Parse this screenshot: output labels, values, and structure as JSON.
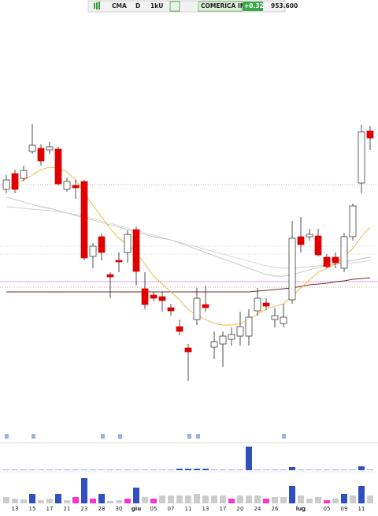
{
  "toolbar": {
    "symbol": "CMA",
    "period": "D",
    "mode": "1kU",
    "name": "COMERICA INC.",
    "change": "+0.32%",
    "price": "953.600"
  },
  "chart_data": {
    "type": "candlestick",
    "categories": [
      null,
      "13",
      null,
      "15",
      null,
      "17",
      null,
      "21",
      null,
      "23",
      null,
      "28",
      null,
      "30",
      null,
      "giu",
      null,
      "05",
      null,
      "07",
      null,
      "11",
      null,
      "13",
      null,
      "17",
      null,
      "20",
      null,
      "24",
      null,
      "26",
      null,
      null,
      "lug",
      null,
      null,
      "05",
      null,
      "09",
      null,
      "11",
      null
    ],
    "open": [
      260,
      280,
      274,
      308,
      312,
      310,
      311,
      260,
      265,
      270,
      175,
      200,
      152,
      170,
      180,
      209,
      134,
      126,
      124,
      110,
      86,
      59,
      95,
      114,
      60,
      64,
      70,
      74,
      74,
      106,
      116,
      95,
      90,
      120,
      200,
      200,
      201,
      174,
      174,
      160,
      200,
      268,
      334
    ],
    "high": [
      278,
      285,
      290,
      343,
      317,
      320,
      314,
      275,
      272,
      272,
      192,
      204,
      155,
      180,
      208,
      213,
      155,
      130,
      130,
      115,
      95,
      64,
      135,
      138,
      80,
      80,
      85,
      105,
      108,
      135,
      122,
      110,
      115,
      220,
      225,
      210,
      210,
      178,
      180,
      205,
      242,
      342,
      340
    ],
    "low": [
      255,
      255,
      270,
      305,
      290,
      305,
      265,
      257,
      248,
      170,
      160,
      170,
      122,
      155,
      167,
      138,
      108,
      118,
      105,
      100,
      75,
      17,
      88,
      105,
      45,
      35,
      62,
      62,
      62,
      100,
      107,
      85,
      85,
      115,
      180,
      195,
      175,
      160,
      160,
      155,
      195,
      255,
      310
    ],
    "close": [
      272,
      260,
      284,
      316,
      296,
      314,
      267,
      270,
      262,
      173,
      188,
      180,
      149,
      168,
      203,
      156,
      114,
      122,
      119,
      106,
      80,
      54,
      122,
      110,
      67,
      74,
      76,
      86,
      98,
      122,
      112,
      100,
      98,
      198,
      190,
      203,
      177,
      162,
      167,
      200,
      239,
      333,
      325
    ],
    "up_color": "#ffffff",
    "down_color": "#e00000",
    "ylim": [
      0,
      500
    ],
    "moving_averages": [
      {
        "color": "#bdbdbd",
        "values": [
          250,
          247,
          244,
          241,
          238,
          236,
          233,
          230,
          227,
          224,
          221,
          218,
          215,
          212,
          209,
          206,
          203,
          200,
          198,
          196,
          192,
          188,
          184,
          180,
          176,
          172,
          168,
          164,
          160,
          156,
          152,
          150,
          150,
          152,
          155,
          158,
          161,
          164,
          166,
          168,
          170,
          172,
          174
        ]
      },
      {
        "color": "#d0d0d0",
        "values": [
          238,
          237,
          236,
          235,
          234,
          233,
          232,
          230,
          228,
          226,
          223,
          220,
          217,
          214,
          211,
          208,
          205,
          202,
          199,
          196,
          193,
          190,
          187,
          184,
          181,
          178,
          175,
          172,
          169,
          166,
          163,
          161,
          160,
          160,
          161,
          162,
          163,
          164,
          165,
          166,
          167,
          168,
          170
        ]
      },
      {
        "color": "#6b2a2a",
        "values": [
          130,
          130,
          130,
          130,
          130,
          130,
          130,
          130,
          130,
          130,
          130,
          130,
          130,
          130,
          130,
          130,
          130,
          130,
          130,
          130,
          130,
          130,
          130,
          130,
          130,
          130,
          130,
          130,
          130,
          131,
          132,
          133,
          134,
          135,
          137,
          139,
          140,
          141,
          143,
          144,
          146,
          147,
          148
        ]
      },
      {
        "color": "#f2b233",
        "values": [
          260,
          265,
          272,
          278,
          285,
          288,
          287,
          282,
          272,
          255,
          240,
          225,
          210,
          198,
          190,
          180,
          165,
          150,
          140,
          130,
          120,
          108,
          100,
          95,
          90,
          88,
          88,
          90,
          95,
          102,
          108,
          112,
          115,
          125,
          135,
          145,
          155,
          160,
          165,
          175,
          185,
          200,
          212
        ]
      }
    ],
    "levels": [
      {
        "value": 143,
        "color": "#e080e0",
        "dashed": false
      },
      {
        "value": 188,
        "color": "#c8c8c8",
        "dashed": true
      },
      {
        "value": 178,
        "color": "#c8c8c8",
        "dashed": true
      },
      {
        "value": 266,
        "color": "#e08080",
        "dashed": true
      },
      {
        "value": 136,
        "color": "#e08080",
        "dashed": true
      }
    ],
    "volume": {
      "ylim": [
        0,
        40
      ],
      "values": [
        8,
        6,
        5,
        12,
        4,
        6,
        12,
        4,
        8,
        32,
        6,
        12,
        3,
        4,
        6,
        20,
        8,
        6,
        10,
        10,
        10,
        10,
        12,
        10,
        10,
        10,
        6,
        10,
        10,
        10,
        6,
        8,
        8,
        22,
        10,
        6,
        8,
        4,
        6,
        12,
        10,
        22,
        10
      ],
      "colors": [
        "#cccccc",
        "#cccccc",
        "#cccccc",
        "#3050c0",
        "#cccccc",
        "#cccccc",
        "#3050c0",
        "#cccccc",
        "#ff33cc",
        "#3050c0",
        "#ff33cc",
        "#3050c0",
        "#cccccc",
        "#cccccc",
        "#ff33cc",
        "#3050c0",
        "#cccccc",
        "#ff33cc",
        "#cccccc",
        "#cccccc",
        "#cccccc",
        "#cccccc",
        "#cccccc",
        "#cccccc",
        "#cccccc",
        "#cccccc",
        "#ff33cc",
        "#cccccc",
        "#cccccc",
        "#cccccc",
        "#ff33cc",
        "#cccccc",
        "#cccccc",
        "#3050c0",
        "#cccccc",
        "#cccccc",
        "#cccccc",
        "#ff33cc",
        "#cccccc",
        "#3050c0",
        "#cccccc",
        "#3050c0",
        "#cccccc"
      ]
    },
    "indicator": {
      "ylim": [
        0,
        32
      ],
      "color": "#3050c0",
      "values": [
        0.5,
        0.5,
        0.5,
        0.5,
        0.5,
        0.5,
        0.5,
        0.5,
        0.5,
        0.5,
        0.5,
        0.5,
        0.5,
        0.5,
        0.5,
        0.5,
        0.5,
        0.5,
        0.5,
        0.5,
        2,
        2,
        2,
        2,
        0.5,
        0.5,
        0.5,
        0.5,
        30,
        0.5,
        0.5,
        0.5,
        0.5,
        4,
        0.5,
        0.5,
        0.5,
        0.5,
        0.5,
        0.5,
        0.5,
        5,
        0.5
      ]
    }
  }
}
